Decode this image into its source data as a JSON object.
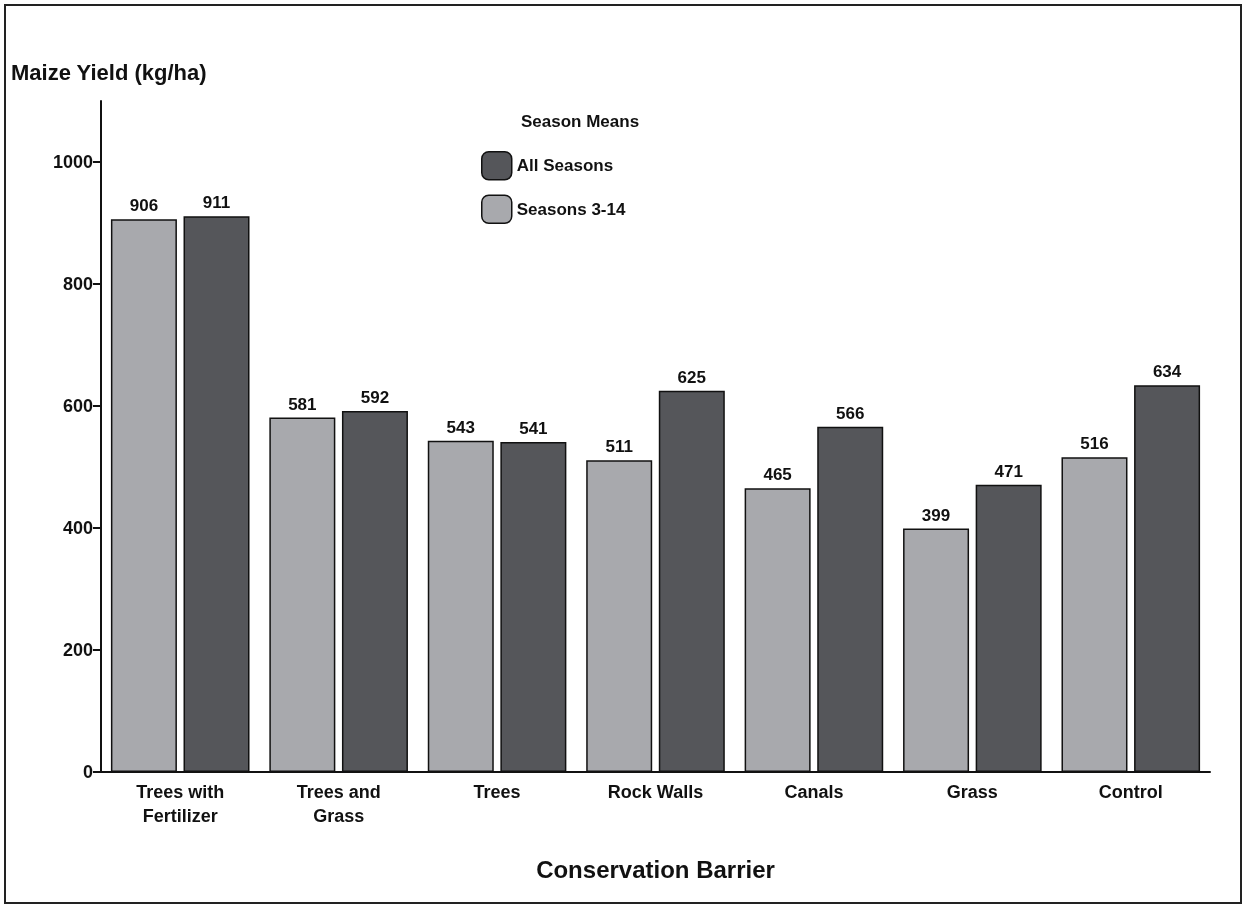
{
  "chart_data": {
    "type": "bar",
    "xlabel": "Conservation Barrier",
    "ylabel": "Maize Yield (kg/ha)",
    "legend_title": "Season Means",
    "categories": [
      "Trees with\nFertilizer",
      "Trees and\nGrass",
      "Trees",
      "Rock Walls",
      "Canals",
      "Grass",
      "Control"
    ],
    "series": [
      {
        "name": "Seasons 3-14",
        "color": "#a8a9ad",
        "values": [
          906,
          581,
          543,
          511,
          465,
          399,
          516
        ]
      },
      {
        "name": "All Seasons",
        "color": "#55565a",
        "values": [
          911,
          592,
          541,
          625,
          566,
          471,
          634
        ]
      }
    ],
    "ylim": [
      0,
      1100
    ],
    "yticks": [
      0,
      200,
      400,
      600,
      800,
      1000
    ],
    "grid": false,
    "legend": "top",
    "data_labels": true
  }
}
